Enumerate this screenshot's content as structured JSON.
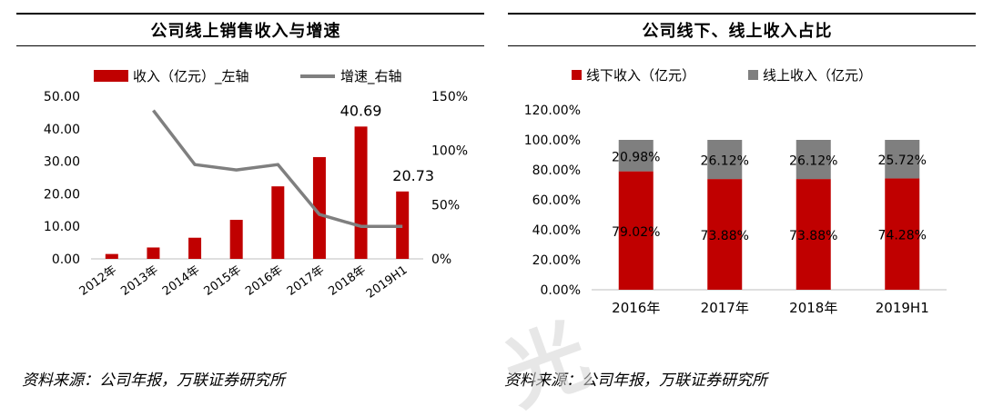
{
  "chart_data": [
    {
      "type": "bar",
      "title": "公司线上销售收入与增速",
      "categories": [
        "2012年",
        "2013年",
        "2014年",
        "2015年",
        "2016年",
        "2017年",
        "2018年",
        "2019H1"
      ],
      "series": [
        {
          "name": "收入（亿元）_左轴",
          "type": "bar",
          "axis": "left",
          "color": "#c00000",
          "values": [
            1.5,
            3.5,
            6.5,
            12.0,
            22.3,
            31.3,
            40.69,
            20.73
          ]
        },
        {
          "name": "增速_右轴",
          "type": "line",
          "axis": "right",
          "color": "#7f7f7f",
          "values": [
            null,
            137,
            87,
            82,
            87,
            41,
            30,
            30
          ]
        }
      ],
      "y_left": {
        "ticks": [
          "0.00",
          "10.00",
          "20.00",
          "30.00",
          "40.00",
          "50.00"
        ],
        "ylim": [
          0,
          50
        ]
      },
      "y_right": {
        "ticks": [
          "0%",
          "50%",
          "100%",
          "150%"
        ],
        "ylim": [
          0,
          150
        ]
      },
      "data_labels": [
        {
          "index": 6,
          "text": "40.69"
        },
        {
          "index": 7,
          "text": "20.73"
        }
      ],
      "legend_position": "top"
    },
    {
      "type": "bar",
      "stacked": true,
      "percent": true,
      "title": "公司线下、线上收入占比",
      "categories": [
        "2016年",
        "2017年",
        "2018年",
        "2019H1"
      ],
      "series": [
        {
          "name": "线下收入（亿元）",
          "color": "#c00000",
          "values": [
            79.02,
            73.88,
            73.88,
            74.28
          ],
          "labels": [
            "79.02%",
            "73.88%",
            "73.88%",
            "74.28%"
          ]
        },
        {
          "name": "线上收入（亿元）",
          "color": "#7f7f7f",
          "values": [
            20.98,
            26.12,
            26.12,
            25.72
          ],
          "labels": [
            "20.98%",
            "26.12%",
            "26.12%",
            "25.72%"
          ]
        }
      ],
      "y_ticks": [
        "0.00%",
        "20.00%",
        "40.00%",
        "60.00%",
        "80.00%",
        "100.00%",
        "120.00%"
      ],
      "ylim": [
        0,
        120
      ],
      "legend_position": "top"
    }
  ],
  "sources": {
    "left": "资料来源：公司年报，万联证券研究所",
    "right": "资料来源：公司年报，万联证券研究所"
  },
  "watermark": "光"
}
